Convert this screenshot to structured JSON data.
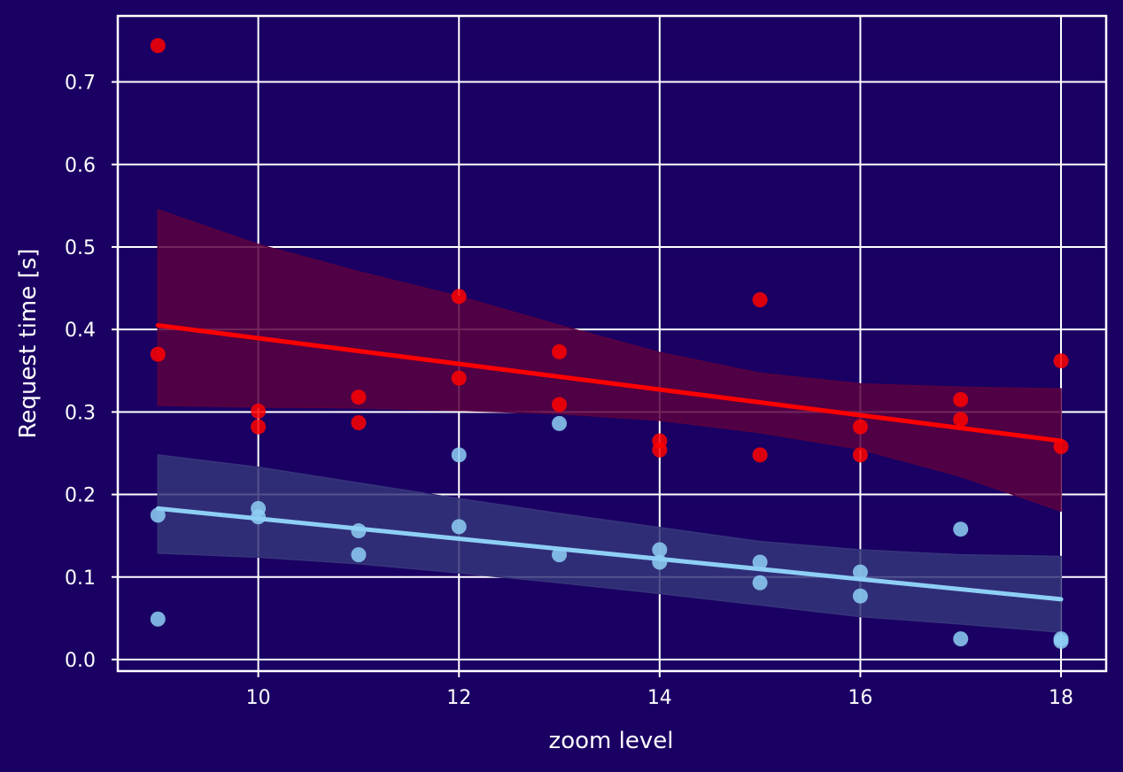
{
  "chart_data": {
    "type": "scatter",
    "title": "",
    "xlabel": "zoom level",
    "ylabel": "Request time [s]",
    "xlim": [
      8.6,
      18.45
    ],
    "ylim": [
      -0.014,
      0.78
    ],
    "xticks": [
      "10",
      "12",
      "14",
      "16",
      "18"
    ],
    "yticks": [
      "0.0",
      "0.1",
      "0.2",
      "0.3",
      "0.4",
      "0.5",
      "0.6",
      "0.7"
    ],
    "grid": true,
    "background": "#1a0063",
    "series": [
      {
        "color": "#ff0000",
        "band_color": "#5a0040",
        "points": [
          [
            9,
            0.744
          ],
          [
            9,
            0.37
          ],
          [
            10,
            0.301
          ],
          [
            10,
            0.282
          ],
          [
            11,
            0.318
          ],
          [
            11,
            0.287
          ],
          [
            12,
            0.44
          ],
          [
            12,
            0.341
          ],
          [
            13,
            0.373
          ],
          [
            13,
            0.309
          ],
          [
            14,
            0.265
          ],
          [
            14,
            0.254
          ],
          [
            15,
            0.436
          ],
          [
            15,
            0.248
          ],
          [
            16,
            0.282
          ],
          [
            16,
            0.248
          ],
          [
            17,
            0.315
          ],
          [
            17,
            0.291
          ],
          [
            18,
            0.362
          ],
          [
            18,
            0.258
          ]
        ],
        "fit": [
          [
            9,
            0.405
          ],
          [
            18,
            0.265
          ]
        ],
        "band_upper": [
          [
            9,
            0.545
          ],
          [
            10,
            0.503
          ],
          [
            11,
            0.47
          ],
          [
            12,
            0.44
          ],
          [
            13,
            0.405
          ],
          [
            14,
            0.372
          ],
          [
            15,
            0.347
          ],
          [
            16,
            0.334
          ],
          [
            17,
            0.33
          ],
          [
            18,
            0.328
          ]
        ],
        "band_lower": [
          [
            9,
            0.308
          ],
          [
            10,
            0.306
          ],
          [
            11,
            0.305
          ],
          [
            12,
            0.302
          ],
          [
            13,
            0.298
          ],
          [
            14,
            0.29
          ],
          [
            15,
            0.275
          ],
          [
            16,
            0.255
          ],
          [
            17,
            0.222
          ],
          [
            18,
            0.18
          ]
        ]
      },
      {
        "color": "#8ecff5",
        "band_color": "#35357a",
        "points": [
          [
            9,
            0.175
          ],
          [
            9,
            0.049
          ],
          [
            10,
            0.183
          ],
          [
            10,
            0.173
          ],
          [
            11,
            0.156
          ],
          [
            11,
            0.127
          ],
          [
            12,
            0.248
          ],
          [
            12,
            0.161
          ],
          [
            13,
            0.286
          ],
          [
            13,
            0.127
          ],
          [
            14,
            0.133
          ],
          [
            14,
            0.118
          ],
          [
            15,
            0.118
          ],
          [
            15,
            0.093
          ],
          [
            16,
            0.106
          ],
          [
            16,
            0.077
          ],
          [
            17,
            0.158
          ],
          [
            17,
            0.025
          ],
          [
            18,
            0.025
          ],
          [
            18,
            0.022
          ]
        ],
        "fit": [
          [
            9,
            0.183
          ],
          [
            18,
            0.073
          ]
        ],
        "band_upper": [
          [
            9,
            0.248
          ],
          [
            10,
            0.233
          ],
          [
            11,
            0.214
          ],
          [
            12,
            0.195
          ],
          [
            13,
            0.177
          ],
          [
            14,
            0.16
          ],
          [
            15,
            0.143
          ],
          [
            16,
            0.133
          ],
          [
            17,
            0.127
          ],
          [
            18,
            0.125
          ]
        ],
        "band_lower": [
          [
            9,
            0.129
          ],
          [
            10,
            0.124
          ],
          [
            11,
            0.116
          ],
          [
            12,
            0.105
          ],
          [
            13,
            0.093
          ],
          [
            14,
            0.08
          ],
          [
            15,
            0.066
          ],
          [
            16,
            0.052
          ],
          [
            17,
            0.043
          ],
          [
            18,
            0.033
          ]
        ]
      }
    ]
  }
}
